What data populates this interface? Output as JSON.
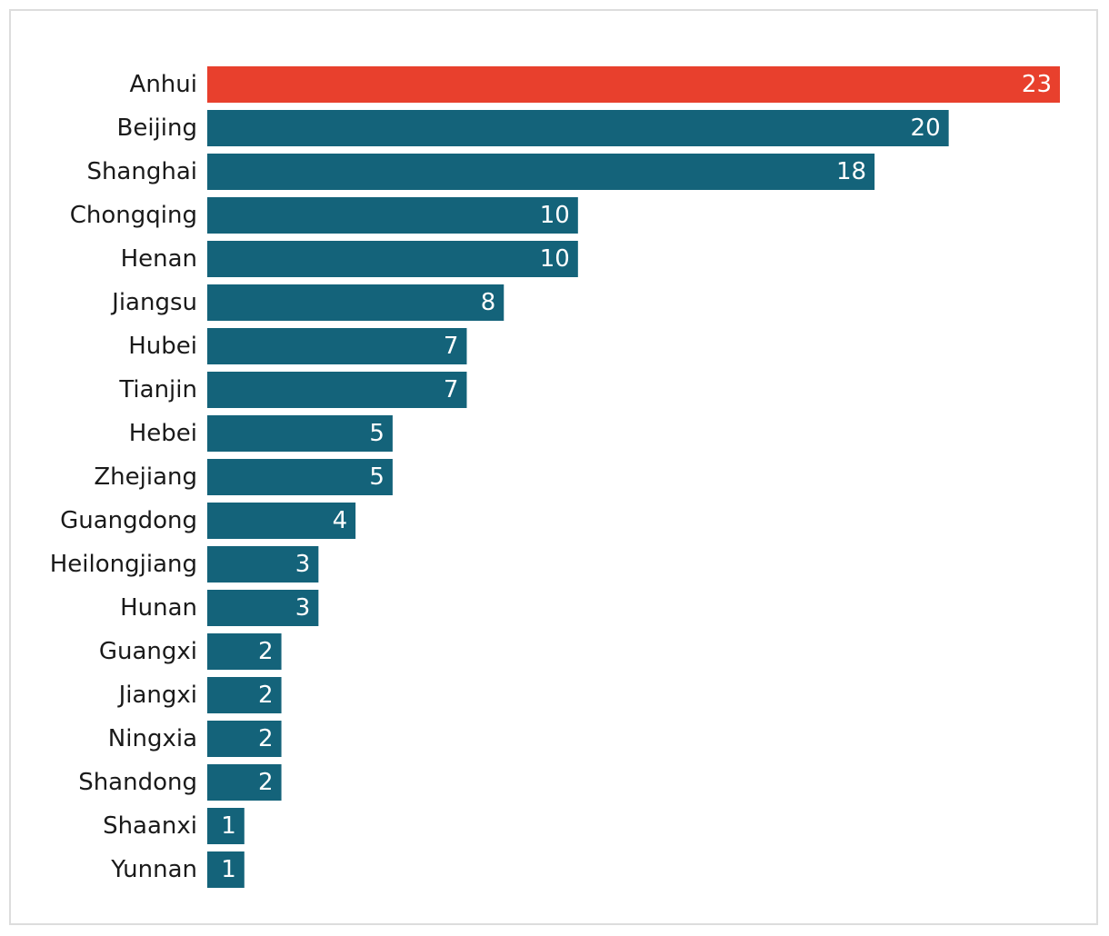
{
  "chart_data": {
    "type": "bar",
    "orientation": "horizontal",
    "categories": [
      "Anhui",
      "Beijing",
      "Shanghai",
      "Chongqing",
      "Henan",
      "Jiangsu",
      "Hubei",
      "Tianjin",
      "Hebei",
      "Zhejiang",
      "Guangdong",
      "Heilongjiang",
      "Hunan",
      "Guangxi",
      "Jiangxi",
      "Ningxia",
      "Shandong",
      "Shaanxi",
      "Yunnan"
    ],
    "values": [
      23,
      20,
      18,
      10,
      10,
      8,
      7,
      7,
      5,
      5,
      4,
      3,
      3,
      2,
      2,
      2,
      2,
      1,
      1
    ],
    "highlight_category": "Anhui",
    "xlim": [
      0,
      23
    ],
    "grid": false,
    "legend": "none",
    "data_labels": "inside-end"
  },
  "colors": {
    "bar": "#14637a",
    "highlight": "#e8402d",
    "label": "#1a1a1a",
    "value_label": "#ffffff",
    "frame_border": "#dddddd"
  }
}
